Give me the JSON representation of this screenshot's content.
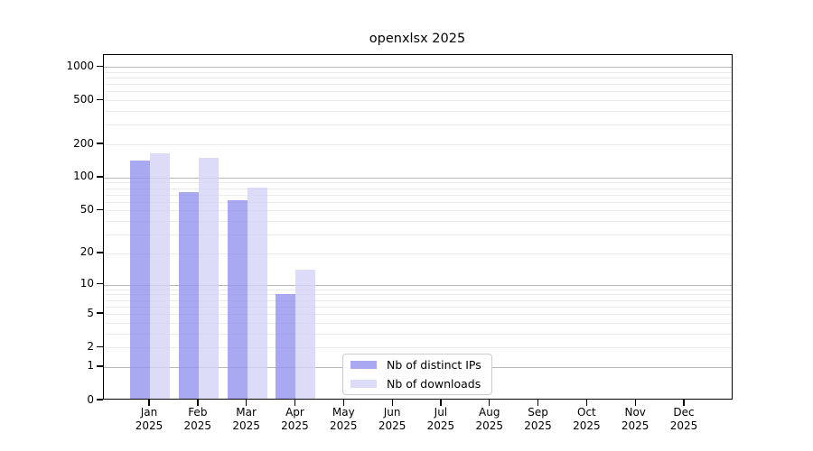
{
  "chart_data": {
    "type": "bar",
    "title": "openxlsx 2025",
    "categories": [
      "Jan",
      "Feb",
      "Mar",
      "Apr",
      "May",
      "Jun",
      "Jul",
      "Aug",
      "Sep",
      "Oct",
      "Nov",
      "Dec"
    ],
    "category_sublabel": "2025",
    "series": [
      {
        "name": "Nb of distinct IPs",
        "color": "#9393ee",
        "values": [
          143,
          74,
          62,
          8,
          null,
          null,
          null,
          null,
          null,
          null,
          null,
          null
        ]
      },
      {
        "name": "Nb of downloads",
        "color": "#d3d3f8",
        "values": [
          167,
          151,
          81,
          14,
          null,
          null,
          null,
          null,
          null,
          null,
          null,
          null
        ]
      }
    ],
    "y_scale": "log1p",
    "y_ticks": [
      0,
      1,
      2,
      5,
      10,
      20,
      50,
      100,
      200,
      500,
      1000
    ],
    "ylim": [
      0,
      1280
    ],
    "xlabel": "",
    "ylabel": "",
    "grid": "horizontal major+minor",
    "legend_position": "inside bottom-center"
  }
}
